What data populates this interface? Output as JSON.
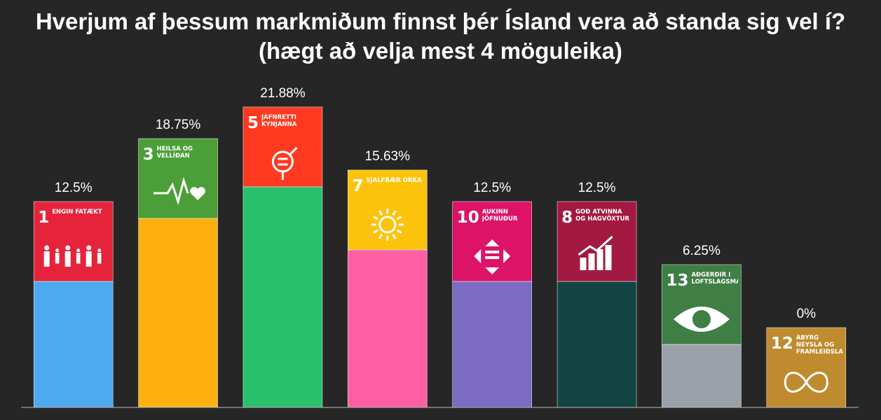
{
  "chart_data": {
    "type": "bar",
    "title": "Hverjum af þessum markmiðum finnst þér Ísland vera að standa sig vel í? (hægt að velja mest 4 möguleika)",
    "goal_numbers": [
      "1",
      "3",
      "5",
      "7",
      "10",
      "8",
      "13",
      "12"
    ],
    "categories": [
      "ENGIN FÁTÆKT",
      "HEILSA OG VELLÍÐAN",
      "JAFNRÉTTI KYNJANNA",
      "SJÁLFBÆR ORKA",
      "AUKINN JÖFNUÐUR",
      "GÓÐ ATVINNA OG HAGVÖXTUR",
      "AÐGERÐIR Í LOFTSLAGSMÁLUM",
      "ÁBYRG NEYSLA OG FRAMLEIÐSLA"
    ],
    "values": [
      12.5,
      18.75,
      21.88,
      15.63,
      12.5,
      12.5,
      6.25,
      0
    ],
    "value_labels": [
      "12.5%",
      "18.75%",
      "21.88%",
      "15.63%",
      "12.5%",
      "12.5%",
      "6.25%",
      "0%"
    ],
    "colors": [
      "#4eaaf0",
      "#fdb00f",
      "#27c16c",
      "#ff5fa2",
      "#7b6bc3",
      "#134444",
      "#9aa1aa",
      "#bf8b2e"
    ],
    "tile_colors": [
      "#e5243b",
      "#4c9f38",
      "#ff3a21",
      "#fcc30b",
      "#dd1367",
      "#a21942",
      "#3f7e44",
      "#bf8b2e"
    ],
    "ylim": [
      0,
      25
    ]
  }
}
